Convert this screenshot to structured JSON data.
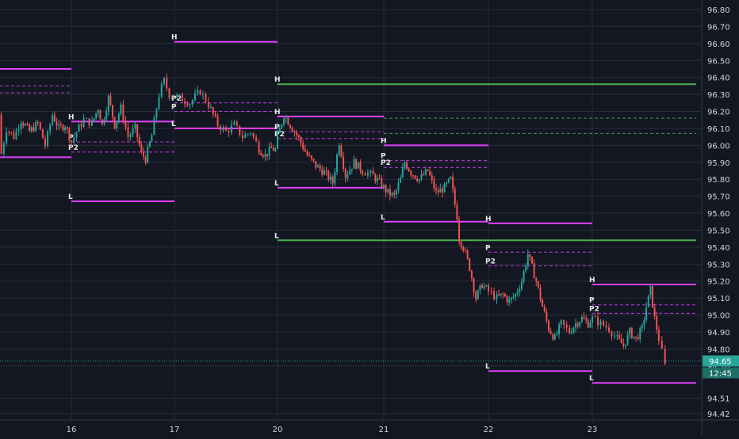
{
  "colors": {
    "background": "#131722",
    "grid": "#2a2e39",
    "axis_text": "#d1d4dc",
    "candle_up": "#26a69a",
    "candle_down": "#ef5350",
    "level_magenta": "#e040fb",
    "level_green": "#4caf50",
    "current_price_bg": "#26a69a",
    "timer_bg": "#1e6f67"
  },
  "chart_data": {
    "type": "candlestick",
    "title": "",
    "xlabel": "",
    "ylabel": "",
    "x_ticks": [
      "16",
      "17",
      "20",
      "21",
      "22",
      "23"
    ],
    "y_ticks": [
      "96.80",
      "96.70",
      "96.60",
      "96.50",
      "96.40",
      "96.30",
      "96.20",
      "96.10",
      "96.00",
      "95.90",
      "95.80",
      "95.70",
      "95.60",
      "95.50",
      "95.40",
      "95.30",
      "95.20",
      "95.10",
      "95.00",
      "94.90",
      "94.80",
      "94.70",
      "94.51",
      "94.42"
    ],
    "ylim": [
      94.42,
      96.85
    ],
    "grid": true,
    "current_price": {
      "label": "94.65",
      "value": 94.65
    },
    "timer_label": "12:45",
    "price_path": [
      [
        15.0,
        96.18
      ],
      [
        15.05,
        95.95
      ],
      [
        15.12,
        95.88
      ],
      [
        15.2,
        95.92
      ],
      [
        15.28,
        95.8
      ],
      [
        15.33,
        95.95
      ],
      [
        15.38,
        96.1
      ],
      [
        15.45,
        96.05
      ],
      [
        15.52,
        96.15
      ],
      [
        15.6,
        96.08
      ],
      [
        15.68,
        96.13
      ],
      [
        15.75,
        96.0
      ],
      [
        15.82,
        96.18
      ],
      [
        15.88,
        96.1
      ],
      [
        15.94,
        96.12
      ],
      [
        16.0,
        96.02
      ],
      [
        16.05,
        96.08
      ],
      [
        16.12,
        96.15
      ],
      [
        16.2,
        96.13
      ],
      [
        16.26,
        96.22
      ],
      [
        16.3,
        96.12
      ],
      [
        16.36,
        96.28
      ],
      [
        16.42,
        96.12
      ],
      [
        16.48,
        96.22
      ],
      [
        16.55,
        96.05
      ],
      [
        16.62,
        96.1
      ],
      [
        16.68,
        95.95
      ],
      [
        16.72,
        95.92
      ],
      [
        16.78,
        96.06
      ],
      [
        16.85,
        96.3
      ],
      [
        16.9,
        96.38
      ],
      [
        16.95,
        96.3
      ],
      [
        17.05,
        96.28
      ],
      [
        17.15,
        96.25
      ],
      [
        17.25,
        96.32
      ],
      [
        17.33,
        96.24
      ],
      [
        17.42,
        96.12
      ],
      [
        17.5,
        96.08
      ],
      [
        17.58,
        96.12
      ],
      [
        17.66,
        96.05
      ],
      [
        17.74,
        96.08
      ],
      [
        17.82,
        95.98
      ],
      [
        17.88,
        95.94
      ],
      [
        17.94,
        95.98
      ],
      [
        18.0,
        95.97
      ],
      [
        20.0,
        96.05
      ],
      [
        20.06,
        96.18
      ],
      [
        20.12,
        96.12
      ],
      [
        20.2,
        96.04
      ],
      [
        20.28,
        95.94
      ],
      [
        20.36,
        95.88
      ],
      [
        20.44,
        95.84
      ],
      [
        20.52,
        95.78
      ],
      [
        20.58,
        96.02
      ],
      [
        20.64,
        95.82
      ],
      [
        20.72,
        95.9
      ],
      [
        20.8,
        95.85
      ],
      [
        20.9,
        95.82
      ],
      [
        20.96,
        95.78
      ],
      [
        21.04,
        95.72
      ],
      [
        21.1,
        95.7
      ],
      [
        21.16,
        95.8
      ],
      [
        21.2,
        95.9
      ],
      [
        21.26,
        95.84
      ],
      [
        21.34,
        95.8
      ],
      [
        21.42,
        95.85
      ],
      [
        21.5,
        95.72
      ],
      [
        21.58,
        95.75
      ],
      [
        21.64,
        95.8
      ],
      [
        21.7,
        95.58
      ],
      [
        21.72,
        95.45
      ],
      [
        21.76,
        95.4
      ],
      [
        21.82,
        95.28
      ],
      [
        21.88,
        95.1
      ],
      [
        21.94,
        95.18
      ],
      [
        22.0,
        95.14
      ],
      [
        22.08,
        95.1
      ],
      [
        22.14,
        95.12
      ],
      [
        22.2,
        95.08
      ],
      [
        22.26,
        95.12
      ],
      [
        22.32,
        95.2
      ],
      [
        22.38,
        95.36
      ],
      [
        22.42,
        95.28
      ],
      [
        22.46,
        95.2
      ],
      [
        22.52,
        95.05
      ],
      [
        22.58,
        94.92
      ],
      [
        22.64,
        94.86
      ],
      [
        22.7,
        94.95
      ],
      [
        22.78,
        94.9
      ],
      [
        22.84,
        94.95
      ],
      [
        22.9,
        94.98
      ],
      [
        22.96,
        94.95
      ],
      [
        23.0,
        94.98
      ],
      [
        23.08,
        94.95
      ],
      [
        23.16,
        94.92
      ],
      [
        23.24,
        94.86
      ],
      [
        23.3,
        94.82
      ],
      [
        23.36,
        94.9
      ],
      [
        23.42,
        94.86
      ],
      [
        23.48,
        94.92
      ],
      [
        23.52,
        95.05
      ],
      [
        23.56,
        95.15
      ],
      [
        23.6,
        94.98
      ],
      [
        23.64,
        94.86
      ],
      [
        23.67,
        94.78
      ],
      [
        23.7,
        94.7
      ],
      [
        23.72,
        94.65
      ]
    ],
    "levels": [
      {
        "label": "",
        "value": 96.45,
        "x_start": 15.0,
        "x_end": 16.0,
        "color": "magenta",
        "style": "solid"
      },
      {
        "label": "",
        "value": 96.35,
        "x_start": 15.0,
        "x_end": 16.0,
        "color": "magenta",
        "style": "dashed"
      },
      {
        "label": "",
        "value": 96.31,
        "x_start": 15.0,
        "x_end": 16.0,
        "color": "magenta",
        "style": "dashed"
      },
      {
        "label": "",
        "value": 95.93,
        "x_start": 15.0,
        "x_end": 16.0,
        "color": "magenta",
        "style": "solid"
      },
      {
        "label": "H",
        "value": 96.14,
        "x_start": 16.0,
        "x_end": 17.0,
        "color": "magenta",
        "style": "solid"
      },
      {
        "label": "P",
        "value": 96.02,
        "x_start": 16.0,
        "x_end": 17.0,
        "color": "magenta",
        "style": "dashed"
      },
      {
        "label": "P2",
        "value": 95.96,
        "x_start": 16.0,
        "x_end": 17.0,
        "color": "magenta",
        "style": "dashed"
      },
      {
        "label": "L",
        "value": 95.67,
        "x_start": 16.0,
        "x_end": 17.0,
        "color": "magenta",
        "style": "solid"
      },
      {
        "label": "H",
        "value": 96.61,
        "x_start": 17.0,
        "x_end": 18.0,
        "color": "magenta",
        "style": "solid"
      },
      {
        "label": "P2",
        "value": 96.25,
        "x_start": 17.0,
        "x_end": 18.0,
        "color": "magenta",
        "style": "dashed"
      },
      {
        "label": "P",
        "value": 96.2,
        "x_start": 17.0,
        "x_end": 18.0,
        "color": "magenta",
        "style": "dashed"
      },
      {
        "label": "L",
        "value": 96.1,
        "x_start": 17.0,
        "x_end": 18.0,
        "color": "magenta",
        "style": "solid"
      },
      {
        "label": "H",
        "value": 96.36,
        "x_start": 20.0,
        "x_end": 24.0,
        "color": "green",
        "style": "solid"
      },
      {
        "label": "L",
        "value": 95.44,
        "x_start": 20.0,
        "x_end": 24.0,
        "color": "green",
        "style": "solid"
      },
      {
        "label": "",
        "value": 96.16,
        "x_start": 21.0,
        "x_end": 24.0,
        "color": "green",
        "style": "dashed"
      },
      {
        "label": "",
        "value": 96.07,
        "x_start": 21.0,
        "x_end": 24.0,
        "color": "green",
        "style": "dashed"
      },
      {
        "label": "H",
        "value": 96.17,
        "x_start": 20.0,
        "x_end": 21.0,
        "color": "magenta",
        "style": "solid"
      },
      {
        "label": "P",
        "value": 96.08,
        "x_start": 20.0,
        "x_end": 21.0,
        "color": "magenta",
        "style": "dashed"
      },
      {
        "label": "P2",
        "value": 96.04,
        "x_start": 20.0,
        "x_end": 21.0,
        "color": "magenta",
        "style": "dashed"
      },
      {
        "label": "L",
        "value": 95.75,
        "x_start": 20.0,
        "x_end": 21.0,
        "color": "magenta",
        "style": "solid"
      },
      {
        "label": "H",
        "value": 96.0,
        "x_start": 21.0,
        "x_end": 22.0,
        "color": "magenta",
        "style": "solid"
      },
      {
        "label": "P",
        "value": 95.91,
        "x_start": 21.0,
        "x_end": 22.0,
        "color": "magenta",
        "style": "dashed"
      },
      {
        "label": "P2",
        "value": 95.87,
        "x_start": 21.0,
        "x_end": 22.0,
        "color": "magenta",
        "style": "dashed"
      },
      {
        "label": "L",
        "value": 95.55,
        "x_start": 21.0,
        "x_end": 22.0,
        "color": "magenta",
        "style": "solid"
      },
      {
        "label": "H",
        "value": 95.54,
        "x_start": 22.0,
        "x_end": 23.0,
        "color": "magenta",
        "style": "solid"
      },
      {
        "label": "P",
        "value": 95.37,
        "x_start": 22.0,
        "x_end": 23.0,
        "color": "magenta",
        "style": "dashed"
      },
      {
        "label": "P2",
        "value": 95.29,
        "x_start": 22.0,
        "x_end": 23.0,
        "color": "magenta",
        "style": "dashed"
      },
      {
        "label": "L",
        "value": 94.67,
        "x_start": 22.0,
        "x_end": 23.0,
        "color": "magenta",
        "style": "solid"
      },
      {
        "label": "H",
        "value": 95.18,
        "x_start": 23.0,
        "x_end": 24.0,
        "color": "magenta",
        "style": "solid"
      },
      {
        "label": "P",
        "value": 95.06,
        "x_start": 23.0,
        "x_end": 24.0,
        "color": "magenta",
        "style": "dashed"
      },
      {
        "label": "P2",
        "value": 95.01,
        "x_start": 23.0,
        "x_end": 24.0,
        "color": "magenta",
        "style": "dashed"
      },
      {
        "label": "L",
        "value": 94.6,
        "x_start": 23.0,
        "x_end": 24.0,
        "color": "magenta",
        "style": "solid"
      }
    ]
  }
}
